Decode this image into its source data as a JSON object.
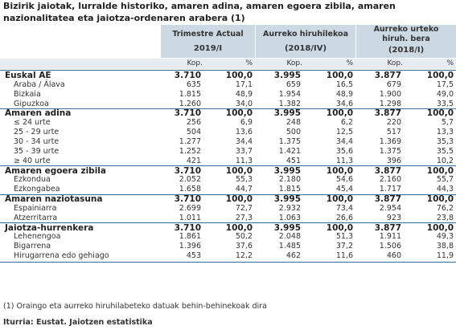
{
  "title": "Bizirik jaiotak, lurralde historiko, amaren adina, amaren egoera zibila, amaren nazionalitatea eta jaiotza-ordenaren arabera (1)",
  "columns": [
    {
      "label": "Trimestre Actual",
      "period": "2019/I"
    },
    {
      "label": "Aurreko hiruhilekoa",
      "period": "(2018/IV)"
    },
    {
      "label": "Aurreko urteko hiruh. bera",
      "period": "(2018/I)"
    }
  ],
  "subheaders": {
    "kop": "Kop.",
    "pct": "%"
  },
  "rows": [
    {
      "label": "Euskal AE",
      "type": "group",
      "v": [
        "3.710",
        "100,0",
        "3.995",
        "100,0",
        "3.877",
        "100,0"
      ]
    },
    {
      "label": "Araba / Álava",
      "type": "sub",
      "v": [
        "635",
        "17,1",
        "659",
        "16,5",
        "679",
        "17,5"
      ]
    },
    {
      "label": "Bizkaia",
      "type": "sub",
      "v": [
        "1.815",
        "48,9",
        "1.954",
        "48,9",
        "1.900",
        "49,0"
      ]
    },
    {
      "label": "Gipuzkoa",
      "type": "sub",
      "v": [
        "1.260",
        "34,0",
        "1.382",
        "34,6",
        "1.298",
        "33,5"
      ]
    },
    {
      "label": "Amaren adina",
      "type": "group",
      "v": [
        "3.710",
        "100,0",
        "3.995",
        "100,0",
        "3.877",
        "100,0"
      ]
    },
    {
      "label": "≤ 24 urte",
      "type": "sub",
      "v": [
        "256",
        "6,9",
        "248",
        "6,2",
        "220",
        "5,7"
      ]
    },
    {
      "label": "25 - 29 urte",
      "type": "sub",
      "v": [
        "504",
        "13,6",
        "500",
        "12,5",
        "517",
        "13,3"
      ]
    },
    {
      "label": "30 - 34 urte",
      "type": "sub",
      "v": [
        "1.277",
        "34,4",
        "1.375",
        "34,4",
        "1.369",
        "35,3"
      ]
    },
    {
      "label": "35 - 39 urte",
      "type": "sub",
      "v": [
        "1.252",
        "33,7",
        "1.421",
        "35,6",
        "1.375",
        "35,5"
      ]
    },
    {
      "label": "≥ 40 urte",
      "type": "sub",
      "v": [
        "421",
        "11,3",
        "451",
        "11,3",
        "396",
        "10,2"
      ]
    },
    {
      "label": "Amaren egoera zibila",
      "type": "group",
      "v": [
        "3.710",
        "100,0",
        "3.995",
        "100,0",
        "3.877",
        "100,0"
      ]
    },
    {
      "label": "Ezkondua",
      "type": "sub",
      "v": [
        "2.052",
        "55,3",
        "2.180",
        "54,6",
        "2.160",
        "55,7"
      ]
    },
    {
      "label": "Ezkongabea",
      "type": "sub",
      "v": [
        "1.658",
        "44,7",
        "1.815",
        "45,4",
        "1.717",
        "44,3"
      ]
    },
    {
      "label": "Amaren naziotasuna",
      "type": "group",
      "v": [
        "3.710",
        "100,0",
        "3.995",
        "100,0",
        "3.877",
        "100,0"
      ]
    },
    {
      "label": "Espainiarra",
      "type": "sub",
      "v": [
        "2.699",
        "72,7",
        "2.932",
        "73,4",
        "2.954",
        "76,2"
      ]
    },
    {
      "label": "Atzerritarra",
      "type": "sub",
      "v": [
        "1.011",
        "27,3",
        "1.063",
        "26,6",
        "923",
        "23,8"
      ]
    },
    {
      "label": "Jaiotza-hurrenkera",
      "type": "group",
      "v": [
        "3.710",
        "100,0",
        "3.995",
        "100,0",
        "3.877",
        "100,0"
      ]
    },
    {
      "label": "Lehenengoa",
      "type": "sub",
      "v": [
        "1.861",
        "50,2",
        "2.048",
        "51,3",
        "1.911",
        "49,3"
      ]
    },
    {
      "label": "Bigarrena",
      "type": "sub",
      "v": [
        "1.396",
        "37,6",
        "1.485",
        "37,2",
        "1.506",
        "38,8"
      ]
    },
    {
      "label": "Hirugarrena edo gehiago",
      "type": "sub",
      "v": [
        "453",
        "12,2",
        "462",
        "11,6",
        "460",
        "11,9"
      ]
    }
  ],
  "footnote": "(1) Oraingo eta aurreko hiruhilabeteko datuak behin-behinekoak dira",
  "source": "Iturria: Eustat. Jaiotzen estatistika"
}
